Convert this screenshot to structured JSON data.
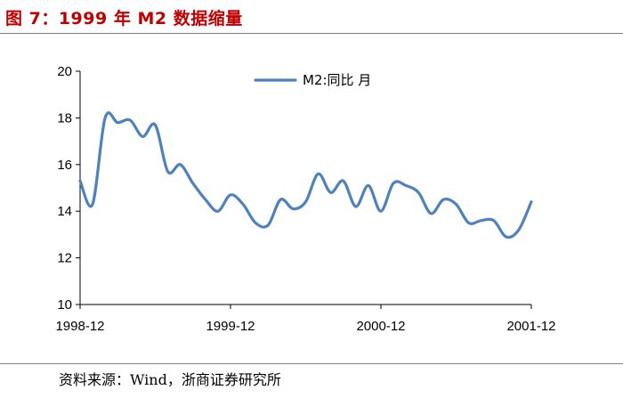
{
  "title": "图 7：1999 年 M2 数据缩量",
  "source": "资料来源：Wind，浙商证券研究所",
  "chart_data": {
    "type": "line",
    "title": "图 7：1999 年 M2 数据缩量",
    "xlabel": "",
    "ylabel": "",
    "ylim": [
      10,
      20
    ],
    "yticks": [
      10,
      12,
      14,
      16,
      18,
      20
    ],
    "xlim": [
      1998.917,
      2001.917
    ],
    "xticks": [
      {
        "label": "1998-12",
        "x": 1998.917
      },
      {
        "label": "1999-12",
        "x": 1999.917
      },
      {
        "label": "2000-12",
        "x": 2000.917
      },
      {
        "label": "2001-12",
        "x": 2001.917
      }
    ],
    "grid": false,
    "legend": "top-center",
    "series": [
      {
        "name": "M2:同比 月",
        "color": "#4f81bd",
        "x": [
          "1998-12",
          "1999-01",
          "1999-02",
          "1999-03",
          "1999-04",
          "1999-05",
          "1999-06",
          "1999-07",
          "1999-08",
          "1999-09",
          "1999-10",
          "1999-11",
          "1999-12",
          "2000-01",
          "2000-02",
          "2000-03",
          "2000-04",
          "2000-05",
          "2000-06",
          "2000-07",
          "2000-08",
          "2000-09",
          "2000-10",
          "2000-11",
          "2000-12",
          "2001-01",
          "2001-02",
          "2001-03",
          "2001-04",
          "2001-05",
          "2001-06",
          "2001-07",
          "2001-08",
          "2001-09",
          "2001-10",
          "2001-11",
          "2001-12"
        ],
        "values": [
          15.3,
          14.3,
          18.0,
          17.8,
          17.9,
          17.2,
          17.7,
          15.7,
          16.0,
          15.2,
          14.5,
          14.0,
          14.7,
          14.3,
          13.5,
          13.4,
          14.5,
          14.1,
          14.4,
          15.6,
          14.8,
          15.3,
          14.2,
          15.1,
          14.0,
          15.2,
          15.1,
          14.8,
          13.9,
          14.5,
          14.3,
          13.5,
          13.6,
          13.6,
          12.9,
          13.2,
          14.4
        ]
      }
    ]
  }
}
